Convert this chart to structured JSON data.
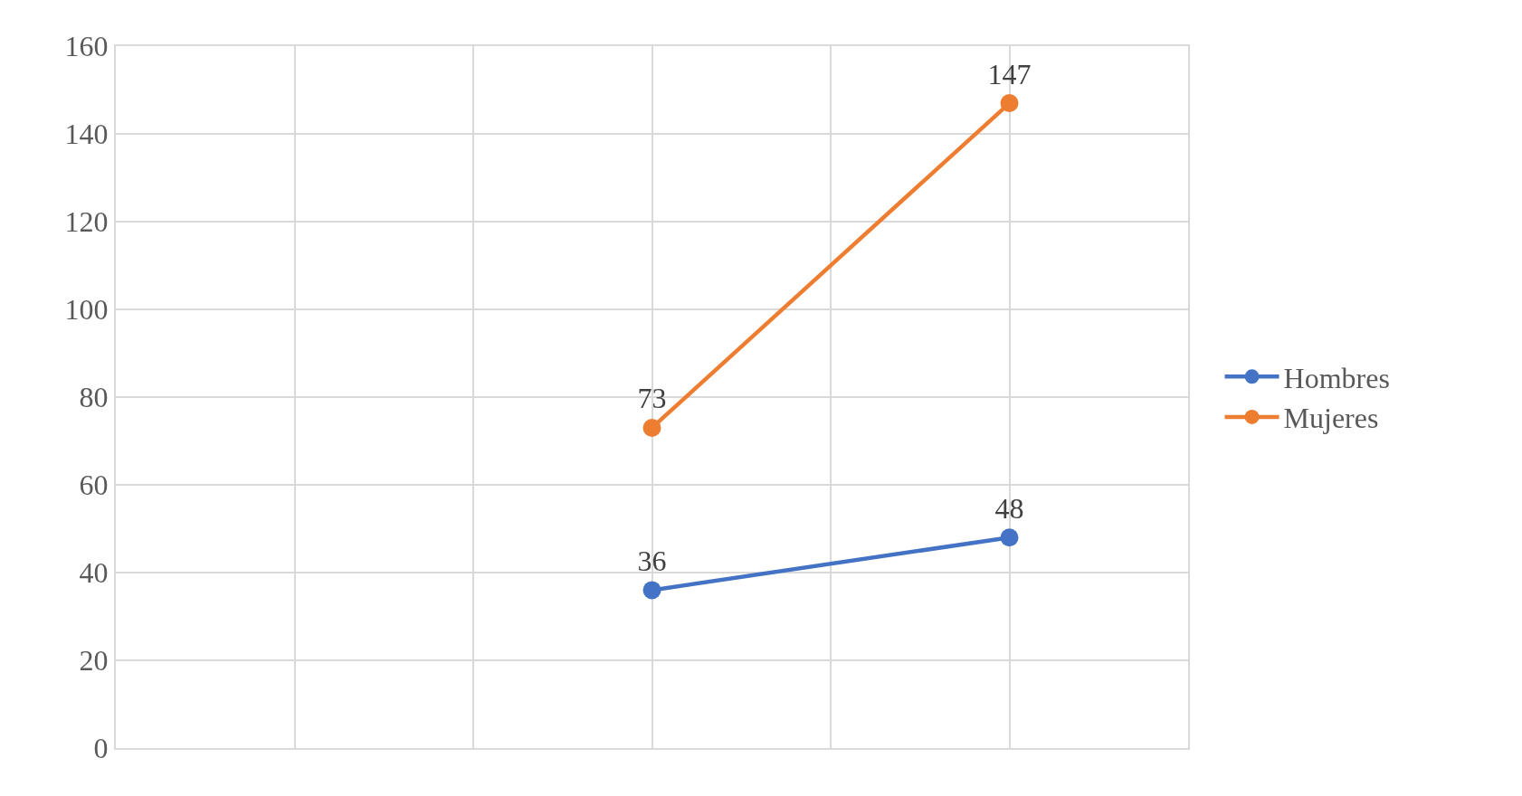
{
  "chart_data": {
    "type": "line",
    "categories": [
      null,
      null,
      null
    ],
    "series": [
      {
        "name": "Hombres",
        "color": "#4472c4",
        "values": [
          null,
          36,
          48
        ]
      },
      {
        "name": "Mujeres",
        "color": "#ed7d31",
        "values": [
          null,
          73,
          147
        ]
      }
    ],
    "ylim": [
      0,
      160
    ],
    "yticks": [
      0,
      20,
      40,
      60,
      80,
      100,
      120,
      140,
      160
    ],
    "grid": true,
    "legend": "right",
    "marker": "circle",
    "line_style": "solid",
    "data_labels": true
  }
}
